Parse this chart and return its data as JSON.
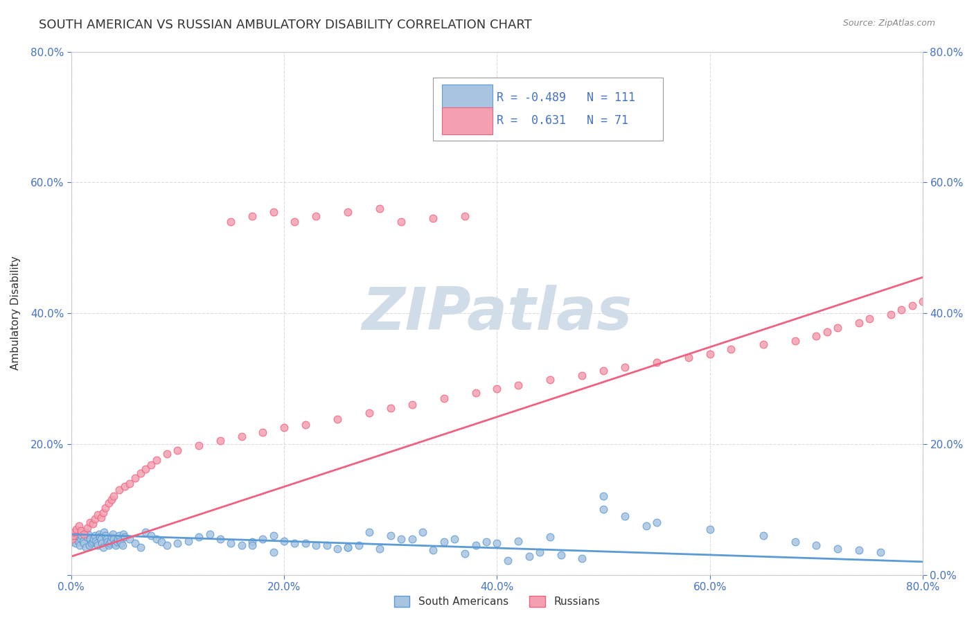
{
  "title": "SOUTH AMERICAN VS RUSSIAN AMBULATORY DISABILITY CORRELATION CHART",
  "source": "Source: ZipAtlas.com",
  "xlabel": "",
  "ylabel": "Ambulatory Disability",
  "xlim": [
    0,
    0.8
  ],
  "ylim": [
    0,
    0.8
  ],
  "xticks": [
    0.0,
    0.2,
    0.4,
    0.6,
    0.8
  ],
  "yticks": [
    0.0,
    0.2,
    0.4,
    0.6,
    0.8
  ],
  "xticklabels": [
    "0.0%",
    "20.0%",
    "40.0%",
    "60.0%",
    "80.0%"
  ],
  "yticklabels": [
    "",
    "20.0%",
    "40.0%",
    "60.0%",
    "80.0%"
  ],
  "right_yticklabels": [
    "0.0%",
    "20.0%",
    "40.0%",
    "60.0%",
    "80.0%"
  ],
  "blue_color": "#a8c4e0",
  "pink_color": "#f4a0b0",
  "blue_line_color": "#5b9bd5",
  "pink_line_color": "#f06080",
  "R_blue": -0.489,
  "N_blue": 111,
  "R_pink": 0.631,
  "N_pink": 71,
  "watermark": "ZIPatlas",
  "watermark_color": "#d0dce8",
  "legend_text_color": "#4472c4",
  "title_fontsize": 13,
  "axis_label_fontsize": 11,
  "tick_fontsize": 11,
  "blue_scatter_x": [
    0.001,
    0.002,
    0.003,
    0.004,
    0.005,
    0.006,
    0.007,
    0.008,
    0.009,
    0.01,
    0.011,
    0.012,
    0.013,
    0.014,
    0.015,
    0.016,
    0.017,
    0.018,
    0.019,
    0.02,
    0.021,
    0.022,
    0.023,
    0.024,
    0.025,
    0.026,
    0.027,
    0.028,
    0.029,
    0.03,
    0.031,
    0.032,
    0.033,
    0.034,
    0.035,
    0.036,
    0.037,
    0.038,
    0.039,
    0.04,
    0.041,
    0.042,
    0.043,
    0.044,
    0.045,
    0.046,
    0.047,
    0.048,
    0.049,
    0.05,
    0.055,
    0.06,
    0.065,
    0.07,
    0.075,
    0.08,
    0.085,
    0.09,
    0.1,
    0.11,
    0.12,
    0.13,
    0.14,
    0.15,
    0.16,
    0.17,
    0.18,
    0.19,
    0.2,
    0.22,
    0.24,
    0.26,
    0.28,
    0.3,
    0.32,
    0.35,
    0.38,
    0.4,
    0.42,
    0.45,
    0.5,
    0.55,
    0.6,
    0.65,
    0.68,
    0.7,
    0.72,
    0.74,
    0.76,
    0.5,
    0.52,
    0.54,
    0.33,
    0.36,
    0.39,
    0.27,
    0.29,
    0.31,
    0.23,
    0.25,
    0.48,
    0.46,
    0.44,
    0.43,
    0.41,
    0.37,
    0.34,
    0.26,
    0.21,
    0.19,
    0.17
  ],
  "blue_scatter_y": [
    0.05,
    0.06,
    0.055,
    0.048,
    0.062,
    0.058,
    0.05,
    0.045,
    0.055,
    0.06,
    0.052,
    0.048,
    0.065,
    0.042,
    0.058,
    0.062,
    0.045,
    0.055,
    0.048,
    0.05,
    0.055,
    0.06,
    0.052,
    0.048,
    0.045,
    0.062,
    0.058,
    0.055,
    0.048,
    0.042,
    0.065,
    0.06,
    0.055,
    0.05,
    0.045,
    0.048,
    0.052,
    0.058,
    0.062,
    0.055,
    0.048,
    0.045,
    0.05,
    0.055,
    0.06,
    0.052,
    0.048,
    0.045,
    0.062,
    0.058,
    0.055,
    0.048,
    0.042,
    0.065,
    0.06,
    0.055,
    0.05,
    0.045,
    0.048,
    0.052,
    0.058,
    0.062,
    0.055,
    0.048,
    0.045,
    0.05,
    0.055,
    0.06,
    0.052,
    0.048,
    0.045,
    0.042,
    0.065,
    0.06,
    0.055,
    0.05,
    0.045,
    0.048,
    0.052,
    0.058,
    0.1,
    0.08,
    0.07,
    0.06,
    0.05,
    0.045,
    0.04,
    0.038,
    0.035,
    0.12,
    0.09,
    0.075,
    0.065,
    0.055,
    0.05,
    0.045,
    0.04,
    0.055,
    0.045,
    0.04,
    0.025,
    0.03,
    0.035,
    0.028,
    0.022,
    0.032,
    0.038,
    0.042,
    0.048,
    0.035,
    0.045
  ],
  "pink_scatter_x": [
    0.001,
    0.002,
    0.003,
    0.005,
    0.007,
    0.009,
    0.012,
    0.015,
    0.018,
    0.02,
    0.022,
    0.025,
    0.028,
    0.03,
    0.032,
    0.035,
    0.038,
    0.04,
    0.045,
    0.05,
    0.055,
    0.06,
    0.065,
    0.07,
    0.075,
    0.08,
    0.09,
    0.1,
    0.12,
    0.14,
    0.16,
    0.18,
    0.2,
    0.22,
    0.25,
    0.28,
    0.3,
    0.32,
    0.35,
    0.38,
    0.4,
    0.42,
    0.45,
    0.48,
    0.5,
    0.52,
    0.55,
    0.58,
    0.6,
    0.62,
    0.65,
    0.68,
    0.7,
    0.71,
    0.72,
    0.74,
    0.75,
    0.77,
    0.78,
    0.79,
    0.8,
    0.15,
    0.17,
    0.19,
    0.21,
    0.23,
    0.26,
    0.29,
    0.31,
    0.34,
    0.37
  ],
  "pink_scatter_y": [
    0.055,
    0.06,
    0.065,
    0.07,
    0.075,
    0.068,
    0.062,
    0.072,
    0.08,
    0.078,
    0.085,
    0.092,
    0.088,
    0.095,
    0.102,
    0.11,
    0.115,
    0.12,
    0.13,
    0.135,
    0.14,
    0.148,
    0.155,
    0.162,
    0.168,
    0.175,
    0.185,
    0.19,
    0.198,
    0.205,
    0.212,
    0.218,
    0.225,
    0.23,
    0.238,
    0.248,
    0.255,
    0.26,
    0.27,
    0.278,
    0.285,
    0.29,
    0.298,
    0.305,
    0.312,
    0.318,
    0.325,
    0.332,
    0.338,
    0.345,
    0.352,
    0.358,
    0.365,
    0.372,
    0.378,
    0.385,
    0.392,
    0.398,
    0.405,
    0.412,
    0.418,
    0.54,
    0.548,
    0.555,
    0.54,
    0.548,
    0.555,
    0.56,
    0.54,
    0.545,
    0.548
  ],
  "background_color": "#ffffff",
  "grid_color": "#cccccc",
  "grid_linestyle": "--",
  "grid_alpha": 0.7
}
